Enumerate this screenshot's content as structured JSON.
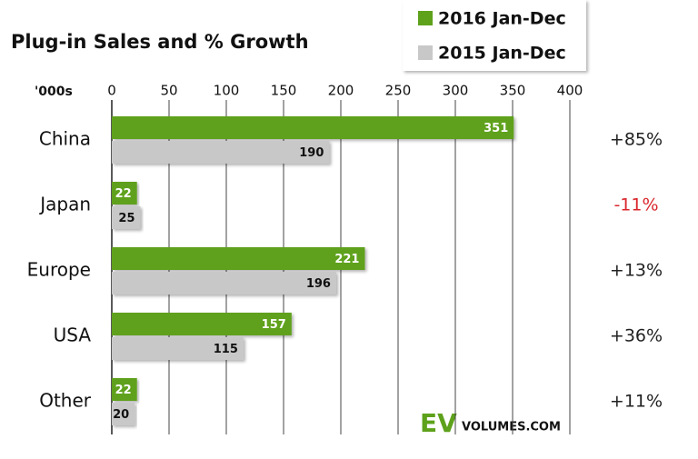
{
  "chart_data": {
    "type": "bar",
    "orientation": "horizontal",
    "title": "Plug-in Sales and % Growth",
    "unit_label": "'000s",
    "categories": [
      "China",
      "Japan",
      "Europe",
      "USA",
      "Other"
    ],
    "series": [
      {
        "name": "2016 Jan-Dec",
        "color": "#5ea11b",
        "label_color": "#ffffff",
        "values": [
          351,
          22,
          221,
          157,
          22
        ]
      },
      {
        "name": "2015 Jan-Dec",
        "color": "#c8c8c8",
        "label_color": "#111111",
        "values": [
          190,
          25,
          196,
          115,
          20
        ]
      }
    ],
    "growth_labels": [
      "+85%",
      "-11%",
      "+13%",
      "+36%",
      "+11%"
    ],
    "growth_colors": [
      "#222222",
      "#d9262c",
      "#222222",
      "#222222",
      "#222222"
    ],
    "xlim": [
      0,
      400
    ],
    "xticks": [
      0,
      50,
      100,
      150,
      200,
      250,
      300,
      350,
      400
    ],
    "grid": true,
    "legend": "top-right",
    "logo": {
      "main": "EV",
      "sub": "VOLUMES.COM"
    }
  }
}
